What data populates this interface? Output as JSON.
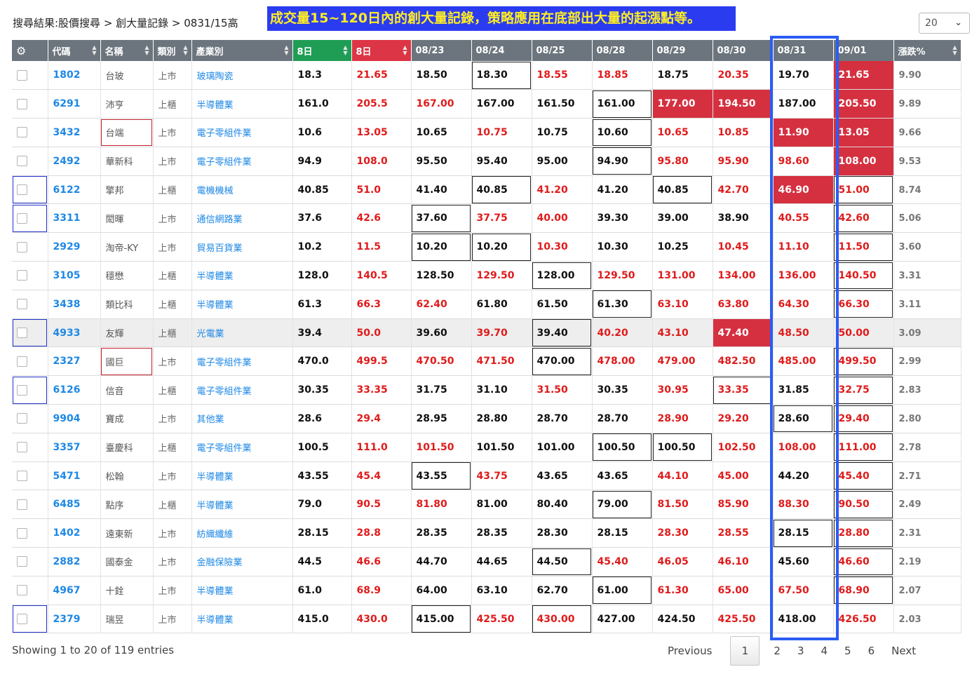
{
  "breadcrumb": "搜尋結果:股價搜尋 > 創大量記錄 > 0831/15高",
  "banner": "成交量15~120日內的創大量記錄，策略應用在底部出大量的起漲點等。",
  "page_size": "20",
  "headers": {
    "code": "代碼",
    "name": "名稱",
    "market": "類別",
    "industry": "產業別",
    "h8a": "8日",
    "h8b": "8日",
    "d1": "08/23",
    "d2": "08/24",
    "d3": "08/25",
    "d4": "08/28",
    "d5": "08/29",
    "d6": "08/30",
    "d7": "08/31",
    "d8": "09/01",
    "pct": "漲跌%"
  },
  "rows": [
    {
      "code": "1802",
      "name": "台玻",
      "market": "上市",
      "industry": "玻璃陶瓷",
      "a": "18.3",
      "b": "21.65",
      "d": [
        "18.50",
        "18.30",
        "18.55",
        "18.85",
        "18.75",
        "20.35",
        "19.70",
        "21.65"
      ],
      "pct": "9.90"
    },
    {
      "code": "6291",
      "name": "沛亨",
      "market": "上櫃",
      "industry": "半導體業",
      "a": "161.0",
      "b": "205.5",
      "d": [
        "167.00",
        "167.00",
        "161.50",
        "161.00",
        "177.00",
        "194.50",
        "187.00",
        "205.50"
      ],
      "pct": "9.89"
    },
    {
      "code": "3432",
      "name": "台端",
      "market": "上市",
      "industry": "電子零組件業",
      "a": "10.6",
      "b": "13.05",
      "d": [
        "10.65",
        "10.75",
        "10.75",
        "10.60",
        "10.65",
        "10.85",
        "11.90",
        "13.05"
      ],
      "pct": "9.66"
    },
    {
      "code": "2492",
      "name": "華新科",
      "market": "上市",
      "industry": "電子零組件業",
      "a": "94.9",
      "b": "108.0",
      "d": [
        "95.50",
        "95.40",
        "95.00",
        "94.90",
        "95.80",
        "95.90",
        "98.60",
        "108.00"
      ],
      "pct": "9.53"
    },
    {
      "code": "6122",
      "name": "擎邦",
      "market": "上櫃",
      "industry": "電機機械",
      "a": "40.85",
      "b": "51.0",
      "d": [
        "41.40",
        "40.85",
        "41.20",
        "41.20",
        "40.85",
        "42.70",
        "46.90",
        "51.00"
      ],
      "pct": "8.74"
    },
    {
      "code": "3311",
      "name": "閎暉",
      "market": "上市",
      "industry": "通信網路業",
      "a": "37.6",
      "b": "42.6",
      "d": [
        "37.60",
        "37.75",
        "40.00",
        "39.30",
        "39.00",
        "38.90",
        "40.55",
        "42.60"
      ],
      "pct": "5.06"
    },
    {
      "code": "2929",
      "name": "淘帝-KY",
      "market": "上市",
      "industry": "貿易百貨業",
      "a": "10.2",
      "b": "11.5",
      "d": [
        "10.20",
        "10.20",
        "10.30",
        "10.30",
        "10.25",
        "10.45",
        "11.10",
        "11.50"
      ],
      "pct": "3.60"
    },
    {
      "code": "3105",
      "name": "穩懋",
      "market": "上櫃",
      "industry": "半導體業",
      "a": "128.0",
      "b": "140.5",
      "d": [
        "128.50",
        "129.50",
        "128.00",
        "129.50",
        "131.00",
        "134.00",
        "136.00",
        "140.50"
      ],
      "pct": "3.31"
    },
    {
      "code": "3438",
      "name": "類比科",
      "market": "上櫃",
      "industry": "半導體業",
      "a": "61.3",
      "b": "66.3",
      "d": [
        "62.40",
        "61.80",
        "61.50",
        "61.30",
        "63.10",
        "63.80",
        "64.30",
        "66.30"
      ],
      "pct": "3.11"
    },
    {
      "code": "4933",
      "name": "友輝",
      "market": "上櫃",
      "industry": "光電業",
      "a": "39.4",
      "b": "50.0",
      "d": [
        "39.60",
        "39.70",
        "39.40",
        "40.20",
        "43.10",
        "47.40",
        "48.50",
        "50.00"
      ],
      "pct": "3.09"
    },
    {
      "code": "2327",
      "name": "國巨",
      "market": "上市",
      "industry": "電子零組件業",
      "a": "470.0",
      "b": "499.5",
      "d": [
        "470.50",
        "471.50",
        "470.00",
        "478.00",
        "479.00",
        "482.50",
        "485.00",
        "499.50"
      ],
      "pct": "2.99"
    },
    {
      "code": "6126",
      "name": "信音",
      "market": "上櫃",
      "industry": "電子零組件業",
      "a": "30.35",
      "b": "33.35",
      "d": [
        "31.75",
        "31.10",
        "31.50",
        "30.35",
        "30.95",
        "33.35",
        "31.85",
        "32.75"
      ],
      "pct": "2.83"
    },
    {
      "code": "9904",
      "name": "寶成",
      "market": "上市",
      "industry": "其他業",
      "a": "28.6",
      "b": "29.4",
      "d": [
        "28.95",
        "28.80",
        "28.70",
        "28.70",
        "28.90",
        "29.20",
        "28.60",
        "29.40"
      ],
      "pct": "2.80"
    },
    {
      "code": "3357",
      "name": "臺慶科",
      "market": "上櫃",
      "industry": "電子零組件業",
      "a": "100.5",
      "b": "111.0",
      "d": [
        "101.50",
        "101.50",
        "101.00",
        "100.50",
        "100.50",
        "102.50",
        "108.00",
        "111.00"
      ],
      "pct": "2.78"
    },
    {
      "code": "5471",
      "name": "松翰",
      "market": "上市",
      "industry": "半導體業",
      "a": "43.55",
      "b": "45.4",
      "d": [
        "43.55",
        "43.75",
        "43.65",
        "43.65",
        "44.10",
        "45.00",
        "44.20",
        "45.40"
      ],
      "pct": "2.71"
    },
    {
      "code": "6485",
      "name": "點序",
      "market": "上櫃",
      "industry": "半導體業",
      "a": "79.0",
      "b": "90.5",
      "d": [
        "81.80",
        "81.00",
        "80.40",
        "79.00",
        "81.50",
        "85.90",
        "88.30",
        "90.50"
      ],
      "pct": "2.49"
    },
    {
      "code": "1402",
      "name": "遠東新",
      "market": "上市",
      "industry": "紡織纖維",
      "a": "28.15",
      "b": "28.8",
      "d": [
        "28.35",
        "28.35",
        "28.30",
        "28.15",
        "28.30",
        "28.55",
        "28.15",
        "28.80"
      ],
      "pct": "2.31"
    },
    {
      "code": "2882",
      "name": "國泰金",
      "market": "上市",
      "industry": "金融保險業",
      "a": "44.5",
      "b": "46.6",
      "d": [
        "44.70",
        "44.65",
        "44.50",
        "45.40",
        "46.05",
        "46.10",
        "45.60",
        "46.60"
      ],
      "pct": "2.19"
    },
    {
      "code": "4967",
      "name": "十銓",
      "market": "上市",
      "industry": "半導體業",
      "a": "61.0",
      "b": "68.9",
      "d": [
        "64.00",
        "63.10",
        "62.70",
        "61.00",
        "61.30",
        "65.00",
        "67.50",
        "68.90"
      ],
      "pct": "2.07"
    },
    {
      "code": "2379",
      "name": "瑞昱",
      "market": "上市",
      "industry": "半導體業",
      "a": "415.0",
      "b": "430.0",
      "d": [
        "415.00",
        "425.50",
        "430.00",
        "427.00",
        "424.50",
        "425.50",
        "418.00",
        "426.50"
      ],
      "pct": "2.03"
    }
  ],
  "styles": {
    "up": [
      [
        false,
        false,
        true,
        true,
        false,
        true,
        false,
        true
      ],
      [
        true,
        false,
        false,
        false,
        true,
        true,
        false,
        true
      ],
      [
        false,
        true,
        false,
        false,
        true,
        true,
        true,
        true
      ],
      [
        false,
        false,
        false,
        false,
        true,
        true,
        true,
        true
      ],
      [
        false,
        false,
        true,
        false,
        false,
        true,
        true,
        true
      ],
      [
        false,
        true,
        true,
        false,
        false,
        false,
        true,
        true
      ],
      [
        false,
        false,
        true,
        false,
        false,
        true,
        true,
        true
      ],
      [
        false,
        true,
        false,
        true,
        true,
        true,
        true,
        true
      ],
      [
        true,
        false,
        false,
        false,
        true,
        true,
        true,
        true
      ],
      [
        false,
        true,
        false,
        true,
        true,
        true,
        true,
        true
      ],
      [
        true,
        true,
        false,
        true,
        true,
        true,
        true,
        true
      ],
      [
        false,
        false,
        true,
        false,
        true,
        true,
        false,
        true
      ],
      [
        false,
        false,
        false,
        false,
        true,
        true,
        false,
        true
      ],
      [
        true,
        false,
        false,
        false,
        false,
        true,
        true,
        true
      ],
      [
        false,
        true,
        false,
        false,
        true,
        true,
        false,
        true
      ],
      [
        true,
        false,
        false,
        false,
        true,
        true,
        true,
        true
      ],
      [
        false,
        false,
        false,
        false,
        true,
        true,
        false,
        true
      ],
      [
        false,
        false,
        false,
        true,
        true,
        true,
        false,
        true
      ],
      [
        false,
        false,
        false,
        false,
        true,
        true,
        true,
        true
      ],
      [
        false,
        true,
        true,
        false,
        false,
        true,
        false,
        true
      ]
    ],
    "fill": [
      [
        false,
        false,
        false,
        false,
        false,
        false,
        false,
        true
      ],
      [
        false,
        false,
        false,
        false,
        true,
        true,
        false,
        true
      ],
      [
        false,
        false,
        false,
        false,
        false,
        false,
        true,
        true
      ],
      [
        false,
        false,
        false,
        false,
        false,
        false,
        false,
        true
      ],
      [
        false,
        false,
        false,
        false,
        false,
        false,
        true,
        false
      ],
      [
        false,
        false,
        false,
        false,
        false,
        false,
        false,
        false
      ],
      [
        false,
        false,
        false,
        false,
        false,
        false,
        false,
        false
      ],
      [
        false,
        false,
        false,
        false,
        false,
        false,
        false,
        false
      ],
      [
        false,
        false,
        false,
        false,
        false,
        false,
        false,
        false
      ],
      [
        false,
        false,
        false,
        false,
        false,
        true,
        false,
        false
      ],
      [
        false,
        false,
        false,
        false,
        false,
        false,
        false,
        false
      ],
      [
        false,
        false,
        false,
        false,
        false,
        false,
        false,
        false
      ],
      [
        false,
        false,
        false,
        false,
        false,
        false,
        false,
        false
      ],
      [
        false,
        false,
        false,
        false,
        false,
        false,
        false,
        false
      ],
      [
        false,
        false,
        false,
        false,
        false,
        false,
        false,
        false
      ],
      [
        false,
        false,
        false,
        false,
        false,
        false,
        false,
        false
      ],
      [
        false,
        false,
        false,
        false,
        false,
        false,
        false,
        false
      ],
      [
        false,
        false,
        false,
        false,
        false,
        false,
        false,
        false
      ],
      [
        false,
        false,
        false,
        false,
        false,
        false,
        false,
        false
      ],
      [
        false,
        false,
        false,
        false,
        false,
        false,
        false,
        false
      ]
    ],
    "box": [
      [
        false,
        true,
        false,
        false,
        false,
        false,
        false,
        false
      ],
      [
        false,
        false,
        false,
        true,
        false,
        false,
        false,
        false
      ],
      [
        false,
        false,
        false,
        true,
        false,
        false,
        false,
        false
      ],
      [
        false,
        false,
        false,
        true,
        false,
        false,
        false,
        false
      ],
      [
        false,
        true,
        false,
        false,
        true,
        false,
        false,
        true
      ],
      [
        true,
        false,
        false,
        false,
        false,
        false,
        false,
        true
      ],
      [
        true,
        true,
        false,
        false,
        false,
        false,
        false,
        true
      ],
      [
        false,
        false,
        true,
        false,
        false,
        false,
        false,
        true
      ],
      [
        false,
        false,
        false,
        true,
        false,
        false,
        false,
        true
      ],
      [
        false,
        false,
        true,
        false,
        false,
        false,
        false,
        false
      ],
      [
        false,
        false,
        true,
        false,
        false,
        false,
        false,
        true
      ],
      [
        false,
        false,
        false,
        false,
        false,
        true,
        false,
        true
      ],
      [
        false,
        false,
        false,
        false,
        false,
        false,
        true,
        true
      ],
      [
        false,
        false,
        false,
        true,
        true,
        false,
        false,
        true
      ],
      [
        true,
        false,
        false,
        false,
        false,
        false,
        false,
        true
      ],
      [
        false,
        false,
        false,
        true,
        false,
        false,
        false,
        true
      ],
      [
        false,
        false,
        false,
        false,
        false,
        false,
        true,
        true
      ],
      [
        false,
        false,
        true,
        false,
        false,
        false,
        false,
        true
      ],
      [
        false,
        false,
        false,
        true,
        false,
        false,
        false,
        true
      ],
      [
        true,
        false,
        true,
        false,
        false,
        false,
        false,
        false
      ]
    ],
    "highlight_row": 9,
    "name_red_box": [
      2,
      10
    ],
    "check_blue_box": [
      4,
      5,
      9,
      11,
      19
    ]
  },
  "footer": {
    "info": "Showing 1 to 20 of 119 entries",
    "previous": "Previous",
    "pages": [
      "1",
      "2",
      "3",
      "4",
      "5",
      "6"
    ],
    "next": "Next"
  }
}
